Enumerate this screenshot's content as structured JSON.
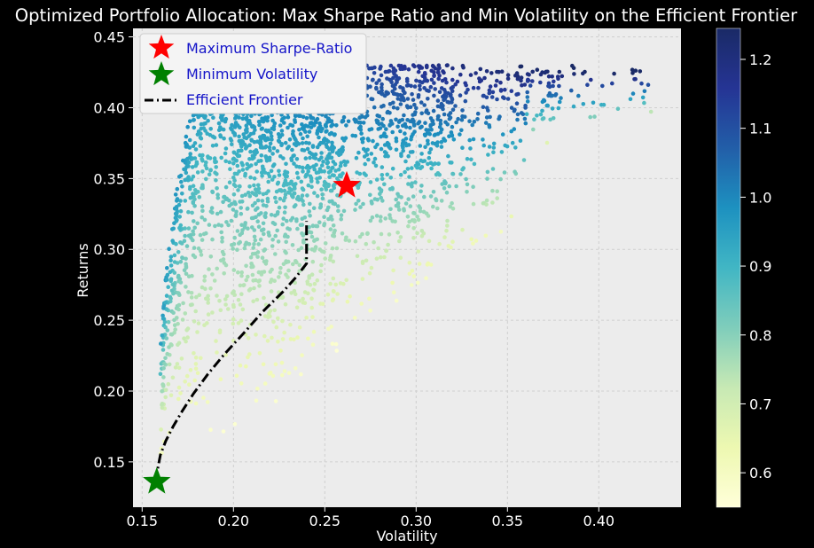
{
  "chart_data": {
    "type": "scatter",
    "title": "Optimized Portfolio Allocation: Max Sharpe Ratio and Min Volatility on the Efficient Frontier",
    "xlabel": "Volatility",
    "ylabel": "Returns",
    "xlim": [
      0.145,
      0.445
    ],
    "ylim": [
      0.118,
      0.456
    ],
    "xticks": [
      "0.15",
      "0.20",
      "0.25",
      "0.30",
      "0.35",
      "0.40"
    ],
    "yticks": [
      "0.15",
      "0.20",
      "0.25",
      "0.30",
      "0.35",
      "0.40",
      "0.45"
    ],
    "grid": true,
    "legend_position": "top-left",
    "colormap": "YlGnBu",
    "colorbar": {
      "min": 0.55,
      "max": 1.245,
      "ticks": [
        "0.6",
        "0.7",
        "0.8",
        "0.9",
        "1.0",
        "1.1",
        "1.2"
      ]
    },
    "series": [
      {
        "name": "Maximum Sharpe-Ratio",
        "marker": "star",
        "color": "#ff0000",
        "points": [
          {
            "x": 0.262,
            "y": 0.345
          }
        ]
      },
      {
        "name": "Minimum Volatility",
        "marker": "star",
        "color": "#008000",
        "points": [
          {
            "x": 0.158,
            "y": 0.136
          }
        ]
      },
      {
        "name": "Efficient Frontier",
        "line_style": "dash-dot",
        "color": "#000000",
        "points": [
          {
            "x": 0.158,
            "y": 0.136
          },
          {
            "x": 0.1585,
            "y": 0.145
          },
          {
            "x": 0.16,
            "y": 0.155
          },
          {
            "x": 0.163,
            "y": 0.165
          },
          {
            "x": 0.167,
            "y": 0.175
          },
          {
            "x": 0.172,
            "y": 0.186
          },
          {
            "x": 0.178,
            "y": 0.198
          },
          {
            "x": 0.186,
            "y": 0.212
          },
          {
            "x": 0.195,
            "y": 0.226
          },
          {
            "x": 0.205,
            "y": 0.24
          },
          {
            "x": 0.216,
            "y": 0.256
          },
          {
            "x": 0.227,
            "y": 0.27
          },
          {
            "x": 0.234,
            "y": 0.28
          },
          {
            "x": 0.24,
            "y": 0.29
          },
          {
            "x": 0.24,
            "y": 0.32
          }
        ]
      }
    ],
    "cloud": {
      "description_free": true,
      "count": 2600,
      "vol_min": 0.16,
      "vol_max": 0.432
    }
  }
}
